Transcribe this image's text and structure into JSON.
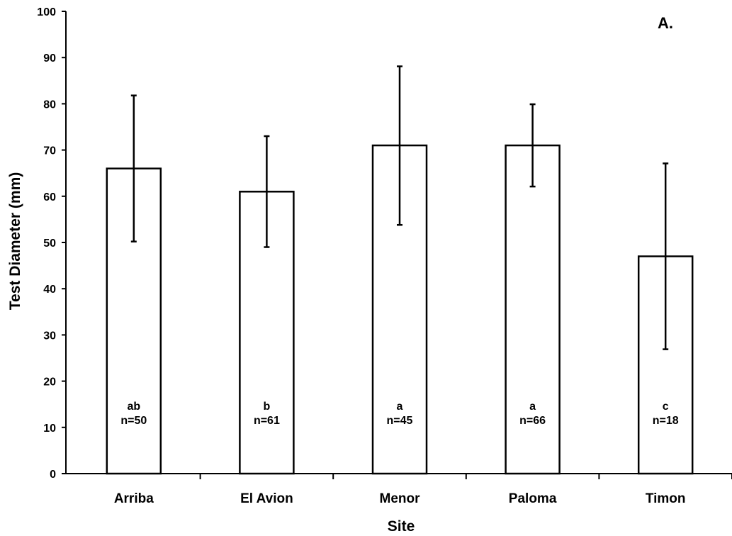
{
  "chart_data": {
    "type": "bar",
    "panel_label": "A.",
    "xlabel": "Site",
    "ylabel": "Test Diameter (mm)",
    "ylim": [
      0,
      100
    ],
    "yticks": [
      0,
      10,
      20,
      30,
      40,
      50,
      60,
      70,
      80,
      90,
      100
    ],
    "categories": [
      "Arriba",
      "El Avion",
      "Menor",
      "Paloma",
      "Timon"
    ],
    "values": [
      66,
      61,
      71,
      71,
      47
    ],
    "error_low": [
      50.2,
      49,
      53.8,
      62.1,
      26.9
    ],
    "error_high": [
      81.8,
      73,
      88.1,
      79.9,
      67.1
    ],
    "letters": [
      "ab",
      "b",
      "a",
      "a",
      "c"
    ],
    "n_labels": [
      "n=50",
      "n=61",
      "n=45",
      "n=66",
      "n=18"
    ],
    "grid": false,
    "legend": "none"
  }
}
